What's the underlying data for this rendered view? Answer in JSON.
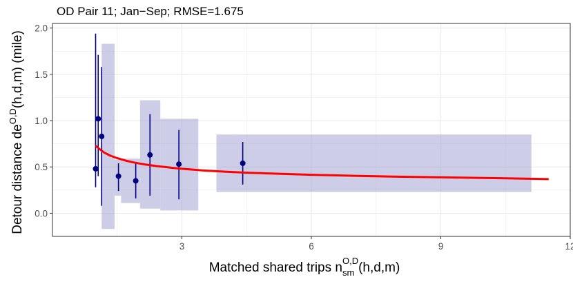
{
  "chart_data": {
    "type": "scatter",
    "title": "OD Pair 11; Jan−Sep; RMSE=1.675",
    "xlabel": {
      "main": "Matched shared trips n",
      "subscript": "sm",
      "superscript": "O,D",
      "suffix": "(h,d,m)"
    },
    "ylabel": {
      "main": "Detour distance de",
      "superscript": "O,D",
      "suffix": "(h,d,m) (mile)"
    },
    "xlim": [
      0.0,
      12.0
    ],
    "ylim": [
      -0.25,
      2.05
    ],
    "xticks": [
      3,
      6,
      9,
      12
    ],
    "xtick_labels": [
      "3",
      "6",
      "9",
      "12"
    ],
    "yticks": [
      0.0,
      0.5,
      1.0,
      1.5,
      2.0
    ],
    "ytick_labels": [
      "0.0",
      "0.5",
      "1.0",
      "1.5",
      "2.0"
    ],
    "grid": true,
    "colors": {
      "points": "#000080",
      "fit": "#ff0000",
      "rect_fill": "#9b9bd0",
      "panel_border": "#333333",
      "grid": "#ebebeb"
    },
    "rectangles": [
      {
        "x0": 1.14,
        "x1": 1.44,
        "y0": -0.17,
        "y1": 1.83
      },
      {
        "x0": 1.44,
        "x1": 1.59,
        "y0": 0.19,
        "y1": 0.58
      },
      {
        "x0": 1.59,
        "x1": 2.03,
        "y0": 0.11,
        "y1": 0.59
      },
      {
        "x0": 2.03,
        "x1": 2.5,
        "y0": 0.05,
        "y1": 1.22
      },
      {
        "x0": 2.5,
        "x1": 3.38,
        "y0": 0.03,
        "y1": 1.02
      },
      {
        "x0": 3.8,
        "x1": 11.1,
        "y0": 0.23,
        "y1": 0.85
      }
    ],
    "points": [
      {
        "x": 1.0,
        "y": 0.48,
        "ymin": 0.28,
        "ymax": 1.94
      },
      {
        "x": 1.06,
        "y": 1.02,
        "ymin": 0.4,
        "ymax": 1.71
      },
      {
        "x": 1.14,
        "y": 0.83,
        "ymin": 0.08,
        "ymax": 1.58
      },
      {
        "x": 1.53,
        "y": 0.4,
        "ymin": 0.24,
        "ymax": 0.54
      },
      {
        "x": 1.93,
        "y": 0.35,
        "ymin": 0.16,
        "ymax": 0.54
      },
      {
        "x": 2.26,
        "y": 0.63,
        "ymin": 0.19,
        "ymax": 1.07
      },
      {
        "x": 2.93,
        "y": 0.53,
        "ymin": 0.15,
        "ymax": 0.9
      },
      {
        "x": 4.41,
        "y": 0.54,
        "ymin": 0.31,
        "ymax": 0.77
      }
    ],
    "fit_curve": {
      "x": [
        1.0,
        1.1,
        1.2,
        1.35,
        1.5,
        1.7,
        1.9,
        2.1,
        2.4,
        2.7,
        3.0,
        3.5,
        4.0,
        4.5,
        5.0,
        6.0,
        7.0,
        8.0,
        9.0,
        10.0,
        11.0,
        11.5
      ],
      "y": [
        0.73,
        0.69,
        0.655,
        0.62,
        0.595,
        0.568,
        0.547,
        0.53,
        0.51,
        0.494,
        0.48,
        0.462,
        0.449,
        0.438,
        0.43,
        0.415,
        0.404,
        0.395,
        0.388,
        0.381,
        0.373,
        0.369
      ]
    }
  }
}
